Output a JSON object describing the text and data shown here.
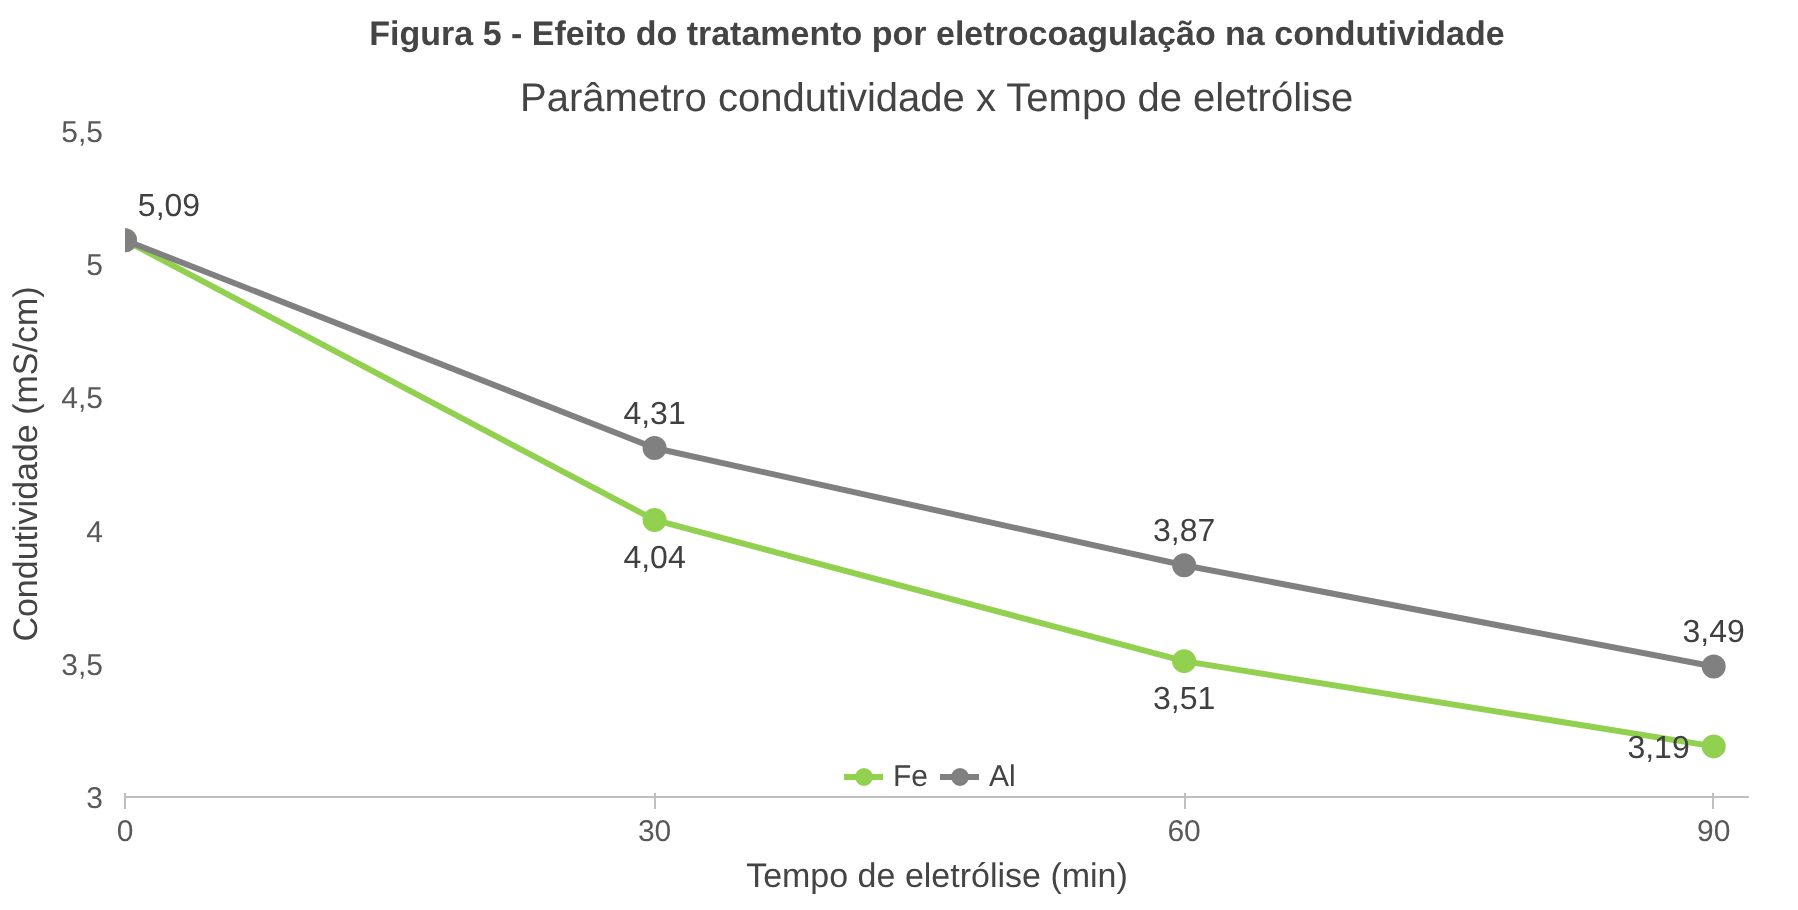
{
  "chart_data": {
    "type": "line",
    "title": "Parâmetro condutividade x Tempo de eletrólise",
    "annotations": [
      "Figura 5 - Efeito do tratamento por eletrocoagulação na condutividade"
    ],
    "xlabel": "Tempo de eletrólise (min)",
    "ylabel": "Condutividade (mS/cm)",
    "x": [
      0,
      30,
      60,
      90
    ],
    "series": [
      {
        "name": "Fe",
        "color": "#92d050",
        "values": [
          5.09,
          4.04,
          3.51,
          3.19
        ],
        "value_labels": [
          null,
          "4,04",
          "3,51",
          "3,19"
        ]
      },
      {
        "name": "Al",
        "color": "#808080",
        "values": [
          5.09,
          4.31,
          3.87,
          3.49
        ],
        "value_labels": [
          "5,09",
          "4,31",
          "3,87",
          "3,49"
        ]
      }
    ],
    "xlim": [
      0,
      92
    ],
    "xticks": [
      0,
      30,
      60,
      90
    ],
    "ylim": [
      3,
      5.5
    ],
    "yticks": [
      {
        "value": 3,
        "label": "3"
      },
      {
        "value": 3.5,
        "label": "3,5"
      },
      {
        "value": 4,
        "label": "4"
      },
      {
        "value": 4.5,
        "label": "4,5"
      },
      {
        "value": 5,
        "label": "5"
      },
      {
        "value": 5.5,
        "label": "5,5"
      }
    ],
    "grid": false,
    "legend": "bottom",
    "marker": "circle",
    "line_style": "solid"
  }
}
